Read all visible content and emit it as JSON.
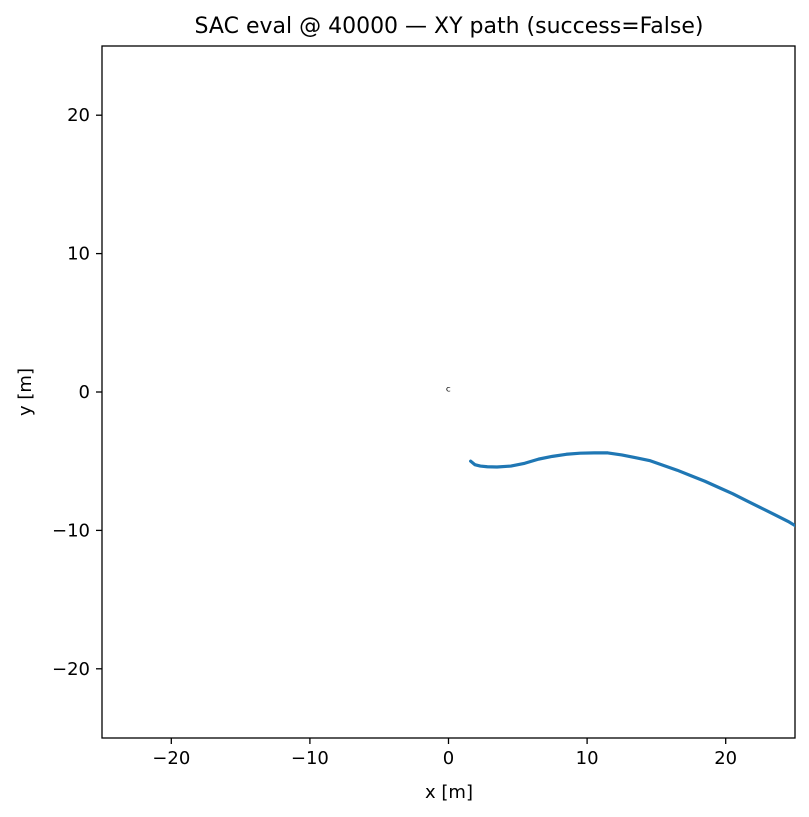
{
  "chart_data": {
    "type": "line",
    "title": "SAC eval @ 40000 — XY path (success=False)",
    "xlabel": "x [m]",
    "ylabel": "y [m]",
    "xlim": [
      -25,
      25
    ],
    "ylim": [
      -25,
      25
    ],
    "xticks": [
      -20,
      -10,
      0,
      10,
      20
    ],
    "yticks": [
      -20,
      -10,
      0,
      10,
      20
    ],
    "xtick_labels": [
      "−20",
      "−10",
      "0",
      "10",
      "20"
    ],
    "ytick_labels": [
      "−20",
      "−10",
      "0",
      "10",
      "20"
    ],
    "grid": false,
    "series": [
      {
        "color": "#1f77b4",
        "x": [
          1.6,
          1.9,
          2.3,
          2.8,
          3.5,
          4.5,
          5.5,
          6.5,
          7.5,
          8.5,
          9.5,
          10.5,
          11.5,
          12.5,
          13.5,
          14.5,
          15.5,
          16.5,
          17.5,
          18.5,
          19.5,
          20.5,
          21.5,
          22.5,
          23.5,
          24.5,
          25.0
        ],
        "y": [
          -5.0,
          -5.25,
          -5.35,
          -5.4,
          -5.42,
          -5.35,
          -5.15,
          -4.85,
          -4.65,
          -4.5,
          -4.42,
          -4.4,
          -4.4,
          -4.55,
          -4.75,
          -4.95,
          -5.3,
          -5.65,
          -6.05,
          -6.45,
          -6.9,
          -7.35,
          -7.85,
          -8.35,
          -8.85,
          -9.35,
          -9.65
        ]
      }
    ],
    "markers": [
      {
        "symbol": "ᶜ",
        "x": 0.0,
        "y": 0.0,
        "color": "#000000"
      }
    ]
  }
}
